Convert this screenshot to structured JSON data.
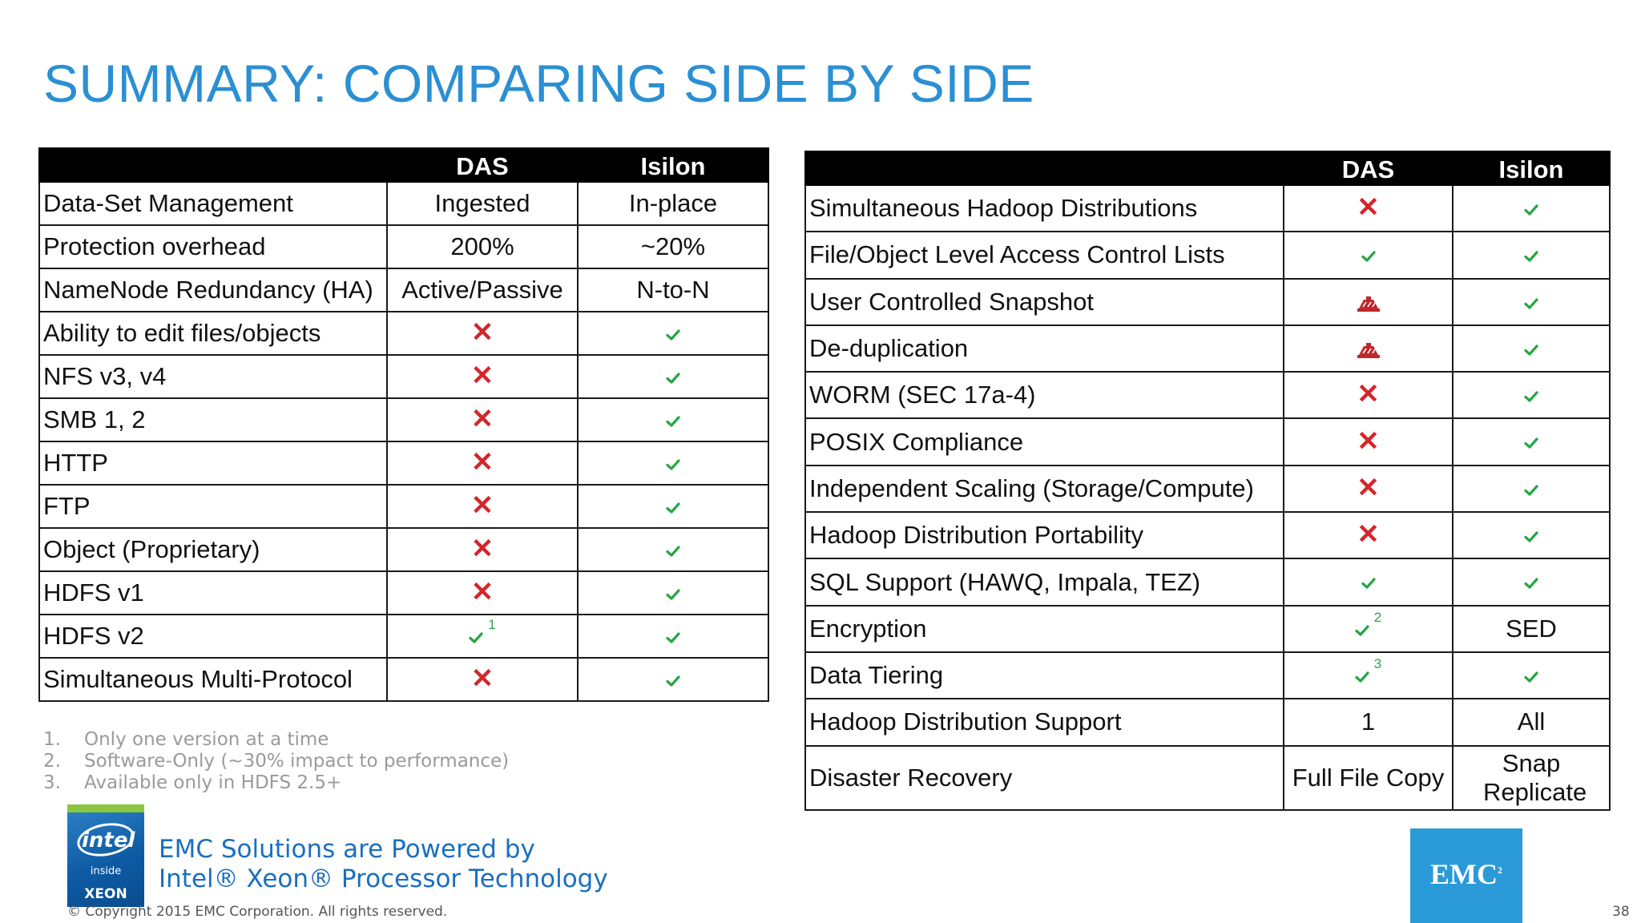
{
  "title": "SUMMARY: COMPARING SIDE BY SIDE",
  "left_table": {
    "headers": [
      "",
      "DAS",
      "Isilon"
    ],
    "rows": [
      {
        "feature": "Data-Set Management",
        "das": "Ingested",
        "isilon": "In-place"
      },
      {
        "feature": "Protection overhead",
        "das": "200%",
        "isilon": "~20%"
      },
      {
        "feature": "NameNode Redundancy (HA)",
        "das": "Active/Passive",
        "isilon": "N-to-N"
      },
      {
        "feature": "Ability to edit files/objects",
        "das": "cross",
        "isilon": "check"
      },
      {
        "feature": "NFS v3, v4",
        "das": "cross",
        "isilon": "check"
      },
      {
        "feature": "SMB 1, 2",
        "das": "cross",
        "isilon": "check"
      },
      {
        "feature": "HTTP",
        "das": "cross",
        "isilon": "check"
      },
      {
        "feature": "FTP",
        "das": "cross",
        "isilon": "check"
      },
      {
        "feature": "Object (Proprietary)",
        "das": "cross",
        "isilon": "check"
      },
      {
        "feature": "HDFS v1",
        "das": "cross",
        "isilon": "check"
      },
      {
        "feature": "HDFS v2",
        "das": "check",
        "das_note": "1",
        "isilon": "check"
      },
      {
        "feature": "Simultaneous Multi-Protocol",
        "das": "cross",
        "isilon": "check"
      }
    ]
  },
  "right_table": {
    "headers": [
      "",
      "DAS",
      "Isilon"
    ],
    "rows": [
      {
        "feature": "Simultaneous Hadoop Distributions",
        "das": "cross",
        "isilon": "check"
      },
      {
        "feature": "File/Object Level Access Control Lists",
        "das": "check",
        "isilon": "check"
      },
      {
        "feature": "User Controlled Snapshot",
        "das": "construction",
        "isilon": "check"
      },
      {
        "feature": "De-duplication",
        "das": "construction",
        "isilon": "check"
      },
      {
        "feature": "WORM (SEC 17a-4)",
        "das": "cross",
        "isilon": "check"
      },
      {
        "feature": "POSIX Compliance",
        "das": "cross",
        "isilon": "check"
      },
      {
        "feature": "Independent Scaling (Storage/Compute)",
        "das": "cross",
        "isilon": "check"
      },
      {
        "feature": "Hadoop Distribution Portability",
        "das": "cross",
        "isilon": "check"
      },
      {
        "feature": "SQL Support (HAWQ, Impala, TEZ)",
        "das": "check",
        "isilon": "check"
      },
      {
        "feature": "Encryption",
        "das": "check",
        "das_note": "2",
        "isilon": "SED"
      },
      {
        "feature": "Data Tiering",
        "das": "check",
        "das_note": "3",
        "isilon": "check"
      },
      {
        "feature": "Hadoop Distribution Support",
        "das": "1",
        "isilon": "All"
      },
      {
        "feature": "Disaster Recovery",
        "das": "Full File Copy",
        "isilon": "Snap Replicate"
      }
    ]
  },
  "footnotes": [
    {
      "num": "1.",
      "text": "Only one version at a time"
    },
    {
      "num": "2.",
      "text": "Software-Only (~30% impact to performance)"
    },
    {
      "num": "3.",
      "text": "Available only in HDFS 2.5+"
    }
  ],
  "intel_badge": {
    "word": "intel",
    "inside": "inside",
    "brand": "XEON"
  },
  "powered_by": {
    "line1": "EMC Solutions are Powered by",
    "line2": "Intel® Xeon® Processor Technology"
  },
  "copyright": "© Copyright 2015 EMC Corporation. All rights reserved.",
  "emc_logo": {
    "text": "EMC",
    "sup": "2"
  },
  "page_number": "38",
  "colors": {
    "title": "#2b8fd3",
    "header_bg": "#000000",
    "cross": "#d3262b",
    "check": "#27a545",
    "construction": "#c0262b",
    "footnote": "#9a9a9a",
    "powered": "#1b6fbf",
    "emc_logo_bg": "#2a9ad8"
  },
  "icons": {
    "cross": "cross-icon",
    "check": "check-icon",
    "construction": "under-construction-icon"
  }
}
